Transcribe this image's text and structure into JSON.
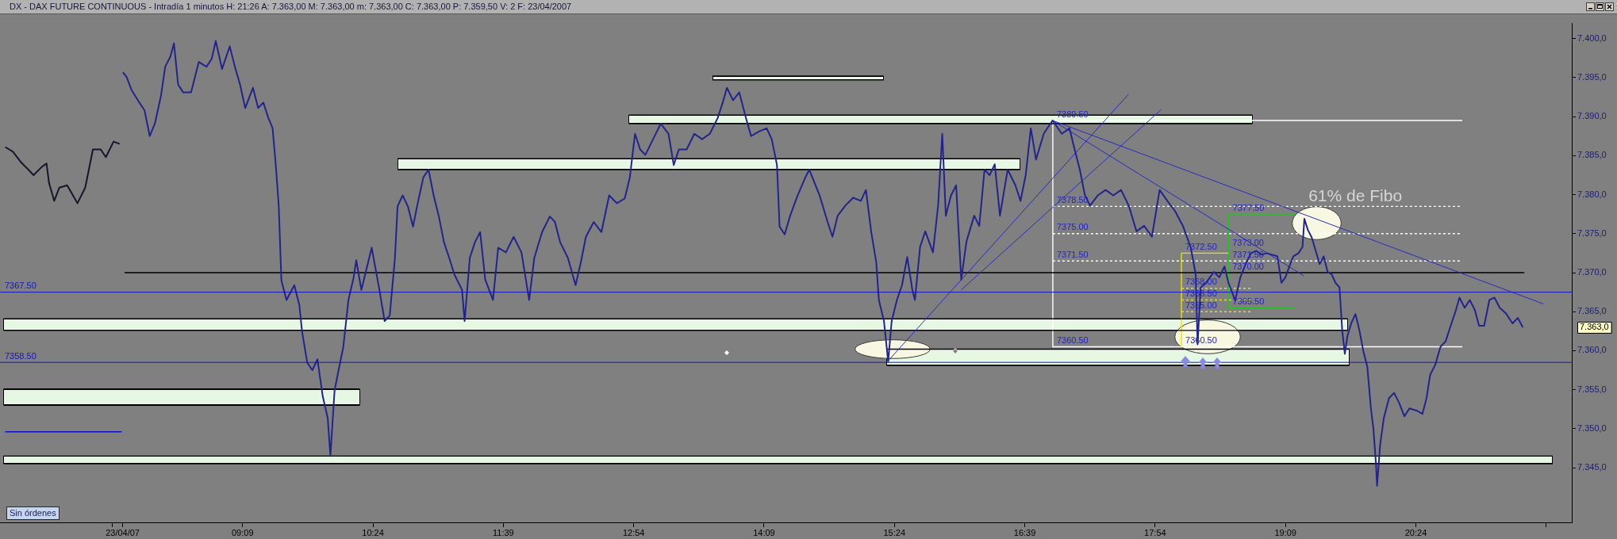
{
  "chart_data": {
    "type": "line",
    "title": "DX - DAX FUTURE CONTINUOUS - Intradía 1 minutos H: 21:26 A: 7.363,00 M: 7.363,00 m: 7.363,00 C: 7.363,00 P: 7.359,50 V: 2 F: 23/04/2007",
    "xlim": [
      6.824,
      21.895
    ],
    "xticks": [
      {
        "value": 7.9,
        "label": null
      },
      {
        "value": 8.0,
        "label": "23/04/07"
      },
      {
        "value": 9.15,
        "label": "09:09"
      },
      {
        "value": 10.4,
        "label": "10:24"
      },
      {
        "value": 11.65,
        "label": "11:39"
      },
      {
        "value": 12.9,
        "label": "12:54"
      },
      {
        "value": 14.15,
        "label": "14:09"
      },
      {
        "value": 15.4,
        "label": "15:24"
      },
      {
        "value": 16.65,
        "label": "16:39"
      },
      {
        "value": 17.9,
        "label": "17:54"
      },
      {
        "value": 19.15,
        "label": "19:09"
      },
      {
        "value": 20.4,
        "label": "20:24"
      },
      {
        "value": 21.65,
        "label": null
      }
    ],
    "ylim": [
      7338,
      7402
    ],
    "yticks": [
      {
        "value": 7345,
        "label": "7.345,0"
      },
      {
        "value": 7350,
        "label": "7.350,0"
      },
      {
        "value": 7355,
        "label": "7.355,0"
      },
      {
        "value": 7360,
        "label": "7.360,0"
      },
      {
        "value": 7365,
        "label": "7.365,0"
      },
      {
        "value": 7370,
        "label": "7.370,0"
      },
      {
        "value": 7375,
        "label": "7.375,0"
      },
      {
        "value": 7380,
        "label": "7.380,0"
      },
      {
        "value": 7385,
        "label": "7.385,0"
      },
      {
        "value": 7390,
        "label": "7.390,0"
      },
      {
        "value": 7395,
        "label": "7.395,0"
      },
      {
        "value": 7400,
        "label": "7.400,0"
      }
    ],
    "ref_lines": [
      {
        "axis": "y",
        "value": 7367.5,
        "label": "7367.50",
        "color": "#1414c0"
      },
      {
        "axis": "y",
        "value": 7358.5,
        "label": "7358.50",
        "color": "#1414c0"
      }
    ],
    "annotations": [
      {
        "text": "61% de Fibo",
        "x": 19.34,
        "y": 7378.5
      },
      "Sin órdenes",
      "7.363,0",
      {
        "text": "7373.00",
        "x": 18.61,
        "y": 7373.0
      },
      {
        "text": "7371.50",
        "x": 18.61,
        "y": 7371.5
      },
      {
        "text": "7370.00",
        "x": 18.61,
        "y": 7370.0
      },
      {
        "text": "7360.50",
        "x": 18.16,
        "y": 7360.5
      }
    ],
    "series": [
      {
        "color": "#15152e",
        "x": [
          6.874,
          6.948,
          7.022,
          7.096,
          7.146,
          7.22,
          7.27,
          7.294,
          7.344,
          7.393,
          7.468,
          7.567,
          7.641,
          7.715,
          7.789,
          7.839,
          7.913,
          7.972
        ],
        "values": [
          7386.1,
          7385.5,
          7384.2,
          7383.2,
          7382.5,
          7383.5,
          7384.0,
          7381.5,
          7379.2,
          7380.9,
          7381.2,
          7378.9,
          7380.9,
          7385.8,
          7385.8,
          7384.8,
          7386.8,
          7386.5
        ]
      },
      {
        "color": "#23238c",
        "x": [
          8.002,
          8.037,
          8.086,
          8.161,
          8.21,
          8.26,
          8.309,
          8.368,
          8.408,
          8.458,
          8.492,
          8.532,
          8.581,
          8.656,
          8.73,
          8.804,
          8.854,
          8.893,
          8.953,
          9.027,
          9.076,
          9.126,
          9.175,
          9.25,
          9.299,
          9.349,
          9.398,
          9.438,
          9.472,
          9.497,
          9.522,
          9.571,
          9.646,
          9.695,
          9.72,
          9.769,
          9.819,
          9.868,
          9.918,
          9.967,
          9.992,
          10.032,
          10.066,
          10.116,
          10.165,
          10.215,
          10.24,
          10.289,
          10.388,
          10.462,
          10.512,
          10.561,
          10.611,
          10.636,
          10.685,
          10.735,
          10.784,
          10.834,
          10.883,
          10.933,
          10.982,
          11.032,
          11.081,
          11.131,
          11.18,
          11.254,
          11.279,
          11.329,
          11.378,
          11.428,
          11.477,
          11.551,
          11.601,
          11.675,
          11.749,
          11.824,
          11.898,
          11.947,
          12.022,
          12.096,
          12.145,
          12.195,
          12.269,
          12.343,
          12.393,
          12.442,
          12.517,
          12.591,
          12.665,
          12.739,
          12.814,
          12.863,
          12.913,
          12.962,
          13.012,
          13.086,
          13.16,
          13.234,
          13.284,
          13.333,
          13.408,
          13.482,
          13.556,
          13.63,
          13.705,
          13.754,
          13.794,
          13.853,
          13.912,
          13.977,
          14.026,
          14.101,
          14.175,
          14.224,
          14.274,
          14.299,
          14.348,
          14.398,
          14.472,
          14.546,
          14.584,
          14.683,
          14.757,
          14.806,
          14.856,
          14.93,
          15.004,
          15.078,
          15.127,
          15.177,
          15.226,
          15.251,
          15.3,
          15.34,
          15.374,
          15.424,
          15.473,
          15.523,
          15.572,
          15.597,
          15.646,
          15.696,
          15.77,
          15.819,
          15.859,
          15.893,
          15.943,
          15.992,
          16.041,
          16.091,
          16.165,
          16.214,
          16.264,
          16.313,
          16.362,
          16.412,
          16.486,
          16.56,
          16.609,
          16.659,
          16.708,
          16.758,
          16.832,
          16.881,
          16.917,
          17.005,
          17.079,
          17.128,
          17.178,
          17.227,
          17.276,
          17.35,
          17.425,
          17.499,
          17.573,
          17.647,
          17.721,
          17.795,
          17.869,
          17.943,
          18.017,
          18.091,
          18.166,
          18.24,
          18.289,
          18.307,
          18.337,
          18.388,
          18.464,
          18.515,
          18.565,
          18.603,
          18.641,
          18.667,
          18.717,
          18.768,
          18.819,
          18.87,
          18.92,
          18.971,
          19.022,
          19.072,
          19.111,
          19.149,
          19.187,
          19.225,
          19.275,
          19.313,
          19.331,
          19.364,
          19.402,
          19.44,
          19.478,
          19.516,
          19.554,
          19.592,
          19.63,
          19.668,
          19.694,
          19.719,
          19.744,
          19.783,
          19.821,
          19.859,
          19.897,
          19.935,
          19.969,
          19.993,
          20.018,
          20.028,
          20.058,
          20.092,
          20.142,
          20.191,
          20.24,
          20.29,
          20.339,
          20.413,
          20.463,
          20.502,
          20.537,
          20.586,
          20.636,
          20.685,
          20.734,
          20.784,
          20.818,
          20.868,
          20.917,
          20.966,
          21.006,
          21.055,
          21.105,
          21.154,
          21.204,
          21.263,
          21.327,
          21.377,
          21.426
        ],
        "values": [
          7395.7,
          7395.1,
          7393.4,
          7391.8,
          7390.8,
          7387.5,
          7389.1,
          7392.7,
          7396.4,
          7397.7,
          7399.4,
          7394.1,
          7393.1,
          7393.1,
          7397.0,
          7396.4,
          7397.4,
          7399.7,
          7396.1,
          7399.0,
          7396.4,
          7394.1,
          7391.1,
          7393.7,
          7391.1,
          7391.8,
          7389.8,
          7388.5,
          7383.2,
          7378.5,
          7369.0,
          7366.5,
          7368.4,
          7365.8,
          7362.5,
          7358.5,
          7357.5,
          7358.9,
          7354.2,
          7351.3,
          7346.5,
          7354.9,
          7357.2,
          7360.5,
          7366.5,
          7369.4,
          7371.6,
          7367.8,
          7373.2,
          7367.8,
          7363.8,
          7364.5,
          7371.9,
          7378.5,
          7379.9,
          7378.5,
          7375.9,
          7379.2,
          7382.2,
          7383.2,
          7379.9,
          7377.2,
          7373.9,
          7371.9,
          7369.8,
          7367.8,
          7363.8,
          7371.9,
          7373.9,
          7375.2,
          7369.1,
          7366.5,
          7373.2,
          7372.6,
          7374.6,
          7372.6,
          7366.5,
          7371.9,
          7375.2,
          7377.2,
          7376.5,
          7373.9,
          7371.9,
          7368.4,
          7371.3,
          7374.6,
          7376.5,
          7375.2,
          7379.9,
          7378.9,
          7379.5,
          7382.2,
          7387.8,
          7385.8,
          7385.1,
          7387.1,
          7389.1,
          7387.8,
          7383.8,
          7385.8,
          7385.8,
          7387.8,
          7387.1,
          7387.8,
          7389.8,
          7391.8,
          7393.7,
          7392.1,
          7393.1,
          7389.8,
          7387.5,
          7388.1,
          7388.5,
          7387.1,
          7383.8,
          7375.9,
          7374.9,
          7377.2,
          7379.9,
          7382.2,
          7383.2,
          7379.9,
          7376.6,
          7374.6,
          7377.3,
          7378.6,
          7379.6,
          7379.2,
          7380.6,
          7375.3,
          7371.3,
          7366.5,
          7363.8,
          7358.6,
          7363.8,
          7366.5,
          7368.4,
          7372.0,
          7367.8,
          7366.5,
          7373.3,
          7375.3,
          7372.6,
          7378.6,
          7387.8,
          7377.3,
          7379.9,
          7381.2,
          7369.1,
          7374.0,
          7377.3,
          7376.0,
          7383.2,
          7382.5,
          7383.9,
          7377.3,
          7383.2,
          7381.2,
          7379.2,
          7382.5,
          7388.5,
          7384.5,
          7387.8,
          7388.8,
          7389.5,
          7387.8,
          7388.5,
          7385.8,
          7383.2,
          7379.9,
          7378.6,
          7379.9,
          7380.6,
          7379.9,
          7380.6,
          7378.6,
          7375.3,
          7376.0,
          7374.6,
          7380.6,
          7379.2,
          7377.9,
          7376.0,
          7373.3,
          7369.8,
          7360.8,
          7368.1,
          7368.7,
          7370.1,
          7369.4,
          7370.8,
          7368.7,
          7367.4,
          7366.4,
          7369.4,
          7371.1,
          7372.5,
          7372.8,
          7372.3,
          7372.5,
          7372.3,
          7372.1,
          7368.7,
          7369.4,
          7370.8,
          7372.1,
          7372.5,
          7373.3,
          7376.9,
          7375.5,
          7374.5,
          7372.8,
          7371.1,
          7372.1,
          7370.1,
          7369.8,
          7368.7,
          7368.1,
          7362.6,
          7359.6,
          7361.9,
          7363.6,
          7364.7,
          7362.6,
          7359.9,
          7357.9,
          7352.6,
          7350.0,
          7345.4,
          7342.7,
          7348.0,
          7351.3,
          7353.9,
          7354.6,
          7353.3,
          7351.6,
          7352.6,
          7352.3,
          7351.9,
          7353.9,
          7356.9,
          7358.2,
          7360.5,
          7361.2,
          7363.2,
          7365.2,
          7366.8,
          7365.5,
          7366.5,
          7365.2,
          7363.2,
          7363.2,
          7366.5,
          7366.8,
          7365.5,
          7364.8,
          7363.5,
          7364.2,
          7363.0
        ]
      },
      {
        "color": "#000000",
        "x": [
          13.655,
          15.298
        ],
        "values": [
          7395.2,
          7395.2
        ]
      },
      {
        "color": "#000000",
        "x": [
          13.655,
          15.298
        ],
        "values": [
          7394.7,
          7394.7
        ]
      },
      {
        "color": "#000000",
        "x": [
          12.853,
          18.833
        ],
        "values": [
          7390.2,
          7390.2
        ]
      },
      {
        "color": "#000000",
        "x": [
          12.853,
          18.833
        ],
        "values": [
          7389.1,
          7389.1
        ]
      },
      {
        "color": "#000000",
        "x": [
          10.635,
          16.607
        ],
        "values": [
          7384.6,
          7384.6
        ]
      },
      {
        "color": "#000000",
        "x": [
          10.635,
          16.607
        ],
        "values": [
          7383.2,
          7383.2
        ]
      },
      {
        "color": "#000000",
        "x": [
          6.858,
          19.746
        ],
        "values": [
          7364.1,
          7364.1
        ]
      },
      {
        "color": "#000000",
        "x": [
          6.858,
          19.746
        ],
        "values": [
          7362.6,
          7362.6
        ]
      },
      {
        "color": "#000000",
        "x": [
          6.858,
          10.274
        ],
        "values": [
          7355.1,
          7355.1
        ]
      },
      {
        "color": "#000000",
        "x": [
          6.858,
          10.274
        ],
        "values": [
          7353.0,
          7353.0
        ]
      },
      {
        "color": "#000000",
        "x": [
          6.858,
          21.712
        ],
        "values": [
          7346.5,
          7346.5
        ]
      },
      {
        "color": "#000000",
        "x": [
          6.858,
          21.712
        ],
        "values": [
          7345.5,
          7345.5
        ]
      },
      {
        "color": "#000000",
        "x": [
          15.325,
          19.761
        ],
        "values": [
          7360.2,
          7360.2
        ]
      },
      {
        "color": "#000000",
        "x": [
          15.325,
          19.761
        ],
        "values": [
          7358.1,
          7358.1
        ]
      },
      {
        "color": "#000000",
        "x": [
          8.018,
          21.44
        ],
        "values": [
          7370,
          7370
        ]
      },
      {
        "color": "#1010d0",
        "x": [
          6.873,
          7.991
        ],
        "values": [
          7349.6,
          7349.6
        ]
      },
      {
        "color": "#2a2ac0",
        "x": [
          15.34,
          17.647
        ],
        "values": [
          7358.7,
          7392.9
        ]
      },
      {
        "color": "#2a2ac0",
        "x": [
          16.041,
          17.958
        ],
        "values": [
          7367.8,
          7390.9
        ]
      },
      {
        "color": "#2a2ac0",
        "x": [
          16.917,
          21.623
        ],
        "values": [
          7389.5,
          7366.0
        ]
      },
      {
        "color": "#2a2ac0",
        "x": [
          16.917,
          19.326
        ],
        "values": [
          7389.5,
          7369.6
        ]
      },
      {
        "color": "#ffffff",
        "x": [
          16.919,
          16.919
        ],
        "values": [
          7389.5,
          7360.5
        ]
      },
      {
        "name": "7389.50",
        "color": "#ffffff",
        "x": [
          16.919,
          20.845
        ],
        "values": [
          7389.5,
          7389.5
        ]
      },
      {
        "name": "7378.50",
        "color": "#ffffff",
        "x": [
          16.919,
          20.845
        ],
        "values": [
          7378.5,
          7378.5
        ],
        "line_style": "dashed"
      },
      {
        "name": "7375.00",
        "color": "#ffffff",
        "x": [
          16.919,
          20.845
        ],
        "values": [
          7375.0,
          7375.0
        ],
        "line_style": "dashed"
      },
      {
        "name": "7371.50",
        "color": "#ffffff",
        "x": [
          16.919,
          20.845
        ],
        "values": [
          7371.5,
          7371.5
        ],
        "line_style": "dashed"
      },
      {
        "name": "7360.50",
        "color": "#ffffff",
        "x": [
          16.919,
          20.845
        ],
        "values": [
          7360.5,
          7360.5
        ]
      },
      {
        "color": "#e4e400",
        "x": [
          18.152,
          18.152
        ],
        "values": [
          7372.5,
          7360.5
        ]
      },
      {
        "name": "7372.50",
        "color": "#e4e400",
        "x": [
          18.152,
          18.603
        ],
        "values": [
          7372.5,
          7372.5
        ]
      },
      {
        "name": "7368.00",
        "color": "#e4e400",
        "x": [
          18.152,
          18.814
        ],
        "values": [
          7368.0,
          7368.0
        ],
        "line_style": "dashed"
      },
      {
        "name": "7366.50",
        "color": "#e4e400",
        "x": [
          18.152,
          18.814
        ],
        "values": [
          7366.5,
          7366.5
        ],
        "line_style": "dashed"
      },
      {
        "name": "7365.00",
        "color": "#e4e400",
        "x": [
          18.152,
          18.814
        ],
        "values": [
          7365.0,
          7365.0
        ],
        "line_style": "dashed"
      },
      {
        "name": "7377.50",
        "color": "#28c028",
        "x": [
          18.605,
          19.25
        ],
        "values": [
          7377.5,
          7377.5
        ]
      },
      {
        "color": "#28c028",
        "x": [
          18.605,
          18.605
        ],
        "values": [
          7377.5,
          7365.5
        ]
      },
      {
        "name": "7365.50",
        "color": "#28c028",
        "x": [
          18.605,
          19.237
        ],
        "values": [
          7365.5,
          7365.5
        ]
      }
    ]
  }
}
